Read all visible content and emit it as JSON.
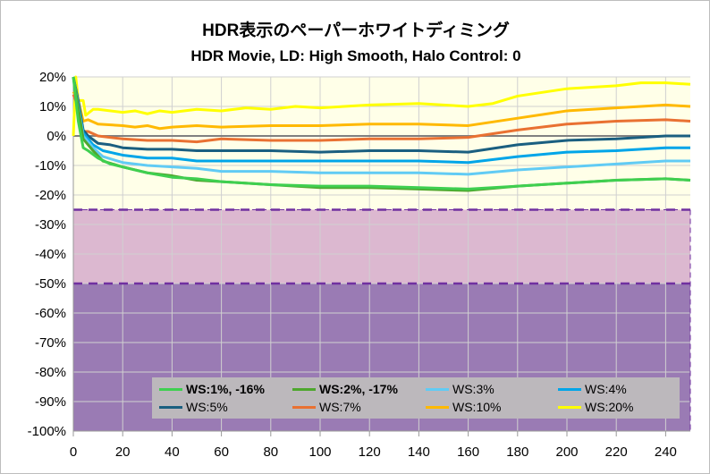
{
  "chart_data": {
    "type": "line",
    "title": "HDR表示のペーパーホワイトディミング",
    "subtitle": "HDR Movie, LD: High Smooth, Halo Control: 0",
    "xlabel": "",
    "ylabel": "",
    "xlim": [
      0,
      250
    ],
    "ylim": [
      -100,
      20
    ],
    "x_ticks": [
      "0",
      "20",
      "40",
      "60",
      "80",
      "100",
      "120",
      "140",
      "160",
      "180",
      "200",
      "220",
      "240"
    ],
    "y_ticks": [
      "20%",
      "10%",
      "0%",
      "-10%",
      "-20%",
      "-30%",
      "-40%",
      "-50%",
      "-60%",
      "-70%",
      "-80%",
      "-90%",
      "-100%"
    ],
    "grid": true,
    "legend_position": "bottom-inside",
    "bands": [
      {
        "from": 20,
        "to": -25,
        "color": "#ffffe8"
      },
      {
        "from": -25,
        "to": -50,
        "color": "#dcb8d0"
      },
      {
        "from": -50,
        "to": -100,
        "color": "#9a7bb4"
      }
    ],
    "series": [
      {
        "name": "WS:1%, -16%",
        "bold": true,
        "color": "#3fcf50",
        "points": [
          [
            0,
            20
          ],
          [
            2,
            5
          ],
          [
            4,
            -4
          ],
          [
            6,
            -5
          ],
          [
            10,
            -7.5
          ],
          [
            15,
            -9.5
          ],
          [
            20,
            -10.5
          ],
          [
            30,
            -12.5
          ],
          [
            40,
            -14
          ],
          [
            50,
            -14.5
          ],
          [
            60,
            -15.5
          ],
          [
            80,
            -16.5
          ],
          [
            100,
            -17
          ],
          [
            120,
            -17
          ],
          [
            140,
            -17.5
          ],
          [
            160,
            -18
          ],
          [
            180,
            -17
          ],
          [
            200,
            -16
          ],
          [
            220,
            -15
          ],
          [
            240,
            -14.5
          ],
          [
            250,
            -15
          ]
        ]
      },
      {
        "name": "WS:2%, -17%",
        "bold": true,
        "color": "#4ea72e",
        "points": [
          [
            0,
            20
          ],
          [
            4,
            -1
          ],
          [
            8,
            -5
          ],
          [
            12,
            -8.5
          ],
          [
            20,
            -10.5
          ],
          [
            30,
            -12.5
          ],
          [
            40,
            -13.5
          ],
          [
            50,
            -15
          ],
          [
            60,
            -15.5
          ],
          [
            80,
            -16.5
          ],
          [
            100,
            -17.5
          ],
          [
            120,
            -17.5
          ],
          [
            140,
            -18
          ],
          [
            160,
            -18.5
          ],
          [
            180,
            -17
          ],
          [
            200,
            -16
          ],
          [
            220,
            -15
          ],
          [
            240,
            -14.5
          ],
          [
            250,
            -15
          ]
        ]
      },
      {
        "name": "WS:3%",
        "bold": false,
        "color": "#61cbf4",
        "points": [
          [
            0,
            20
          ],
          [
            4,
            0
          ],
          [
            8,
            -4
          ],
          [
            12,
            -7
          ],
          [
            20,
            -9
          ],
          [
            30,
            -10
          ],
          [
            40,
            -10.5
          ],
          [
            50,
            -11
          ],
          [
            60,
            -12
          ],
          [
            80,
            -12
          ],
          [
            100,
            -12.5
          ],
          [
            120,
            -12.5
          ],
          [
            140,
            -12.5
          ],
          [
            160,
            -13
          ],
          [
            180,
            -11.5
          ],
          [
            200,
            -10.5
          ],
          [
            220,
            -9.5
          ],
          [
            240,
            -8.5
          ],
          [
            250,
            -8.5
          ]
        ]
      },
      {
        "name": "WS:4%",
        "bold": false,
        "color": "#00a5e8",
        "points": [
          [
            0,
            20
          ],
          [
            4,
            1
          ],
          [
            8,
            -3
          ],
          [
            12,
            -5
          ],
          [
            20,
            -6.5
          ],
          [
            30,
            -7.5
          ],
          [
            40,
            -7.5
          ],
          [
            50,
            -8.5
          ],
          [
            60,
            -8.5
          ],
          [
            80,
            -8.5
          ],
          [
            100,
            -8.5
          ],
          [
            120,
            -8.5
          ],
          [
            140,
            -8.5
          ],
          [
            160,
            -9
          ],
          [
            180,
            -7
          ],
          [
            200,
            -5.5
          ],
          [
            220,
            -5
          ],
          [
            240,
            -4
          ],
          [
            250,
            -4
          ]
        ]
      },
      {
        "name": "WS:5%",
        "bold": false,
        "color": "#1a5f80",
        "points": [
          [
            0,
            20
          ],
          [
            2,
            12
          ],
          [
            4,
            2
          ],
          [
            6,
            0
          ],
          [
            10,
            -2.5
          ],
          [
            15,
            -3
          ],
          [
            20,
            -4
          ],
          [
            30,
            -4.5
          ],
          [
            40,
            -4.5
          ],
          [
            50,
            -5
          ],
          [
            60,
            -5
          ],
          [
            80,
            -5
          ],
          [
            100,
            -5.5
          ],
          [
            120,
            -5
          ],
          [
            140,
            -5
          ],
          [
            160,
            -5.5
          ],
          [
            180,
            -3
          ],
          [
            200,
            -1.5
          ],
          [
            220,
            -1
          ],
          [
            240,
            0
          ],
          [
            250,
            0
          ]
        ]
      },
      {
        "name": "WS:7%",
        "bold": false,
        "color": "#e97132",
        "points": [
          [
            0,
            14
          ],
          [
            2,
            10
          ],
          [
            4,
            1.5
          ],
          [
            6,
            1.5
          ],
          [
            10,
            0
          ],
          [
            20,
            -1
          ],
          [
            30,
            -1.5
          ],
          [
            40,
            -1.5
          ],
          [
            50,
            -2
          ],
          [
            60,
            -1
          ],
          [
            80,
            -1.5
          ],
          [
            100,
            -1.5
          ],
          [
            120,
            -1
          ],
          [
            140,
            -1
          ],
          [
            160,
            -0.5
          ],
          [
            180,
            2
          ],
          [
            200,
            4
          ],
          [
            220,
            5
          ],
          [
            240,
            5.5
          ],
          [
            250,
            5
          ]
        ]
      },
      {
        "name": "WS:10%",
        "bold": false,
        "color": "#ffb900",
        "points": [
          [
            0,
            15
          ],
          [
            2,
            12
          ],
          [
            4,
            5
          ],
          [
            6,
            5.5
          ],
          [
            10,
            4
          ],
          [
            20,
            3.5
          ],
          [
            25,
            3
          ],
          [
            30,
            3.5
          ],
          [
            35,
            2.5
          ],
          [
            40,
            3
          ],
          [
            50,
            3.5
          ],
          [
            60,
            3
          ],
          [
            80,
            3.5
          ],
          [
            90,
            3.5
          ],
          [
            100,
            3.5
          ],
          [
            120,
            4
          ],
          [
            140,
            4
          ],
          [
            160,
            3.5
          ],
          [
            180,
            6
          ],
          [
            200,
            8.5
          ],
          [
            220,
            9.5
          ],
          [
            240,
            10.5
          ],
          [
            250,
            10
          ]
        ]
      },
      {
        "name": "WS:20%",
        "bold": false,
        "color": "#ffff00",
        "points": [
          [
            0,
            0
          ],
          [
            1,
            20
          ],
          [
            2,
            12
          ],
          [
            4,
            12
          ],
          [
            5,
            7
          ],
          [
            8,
            9
          ],
          [
            10,
            9
          ],
          [
            20,
            8
          ],
          [
            25,
            8.5
          ],
          [
            30,
            7.5
          ],
          [
            35,
            8.5
          ],
          [
            40,
            8
          ],
          [
            50,
            9
          ],
          [
            60,
            8.5
          ],
          [
            70,
            9.5
          ],
          [
            80,
            9
          ],
          [
            90,
            10
          ],
          [
            100,
            9.5
          ],
          [
            120,
            10.5
          ],
          [
            140,
            11
          ],
          [
            160,
            10
          ],
          [
            170,
            11
          ],
          [
            180,
            13.5
          ],
          [
            200,
            16
          ],
          [
            220,
            17
          ],
          [
            230,
            18
          ],
          [
            240,
            18
          ],
          [
            250,
            17.5
          ]
        ]
      }
    ]
  }
}
